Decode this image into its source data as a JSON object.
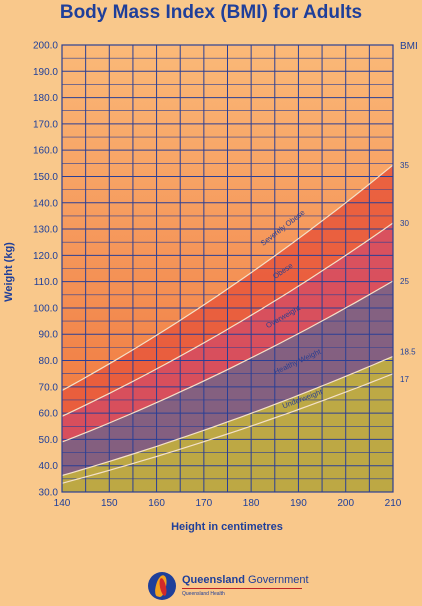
{
  "chart_data": {
    "type": "area",
    "title": "Body Mass Index (BMI) for Adults",
    "xlabel": "Height in centimetres",
    "ylabel": "Weight (kg)",
    "bmi_axis_label": "BMI",
    "xlim": [
      140,
      210
    ],
    "ylim": [
      30,
      200
    ],
    "x_ticks": [
      "140",
      "150",
      "160",
      "170",
      "180",
      "190",
      "200",
      "210"
    ],
    "y_ticks": [
      "30.0",
      "40.0",
      "50.0",
      "60.0",
      "70.0",
      "80.0",
      "90.0",
      "100.0",
      "110.0",
      "120.0",
      "130.0",
      "140.0",
      "150.0",
      "160.0",
      "170.0",
      "180.0",
      "190.0",
      "200.0"
    ],
    "grid": true,
    "bmi_lines": [
      {
        "label": "17",
        "bmi": 17,
        "values": [
          [
            140,
            33.3
          ],
          [
            210,
            75.0
          ]
        ]
      },
      {
        "label": "18.5",
        "bmi": 18.5,
        "values": [
          [
            140,
            36.3
          ],
          [
            210,
            81.6
          ]
        ]
      },
      {
        "label": "25",
        "bmi": 25,
        "values": [
          [
            140,
            49.0
          ],
          [
            210,
            110.3
          ]
        ]
      },
      {
        "label": "30",
        "bmi": 30,
        "values": [
          [
            140,
            58.8
          ],
          [
            210,
            132.3
          ]
        ]
      },
      {
        "label": "35",
        "bmi": 35,
        "values": [
          [
            140,
            68.6
          ],
          [
            210,
            154.4
          ]
        ]
      }
    ],
    "categories": [
      {
        "name": "Underweight",
        "from_bmi": 0,
        "to_bmi": 18.5,
        "color": "#b9ad45"
      },
      {
        "name": "Healthy Weight",
        "from_bmi": 18.5,
        "to_bmi": 25,
        "color": "#7b5d86"
      },
      {
        "name": "Overweight",
        "from_bmi": 25,
        "to_bmi": 30,
        "color": "#d64b5e"
      },
      {
        "name": "Obese",
        "from_bmi": 30,
        "to_bmi": 35,
        "color": "#e85b3d"
      },
      {
        "name": "Severely Obese",
        "from_bmi": 35,
        "to_bmi": 99,
        "color": "#f37b3a"
      }
    ]
  },
  "colors": {
    "axis_text": "#1f3f9a",
    "grid": "#2b3f95",
    "background": "#f9c88b",
    "plot_top": "#fbb978",
    "plot_bottom": "#ee6d35"
  },
  "footer": {
    "logo_name": "queensland-government-logo",
    "brand_bold": "Queensland",
    "brand_regular": "Government",
    "brand_sub": "Queensland Health"
  }
}
